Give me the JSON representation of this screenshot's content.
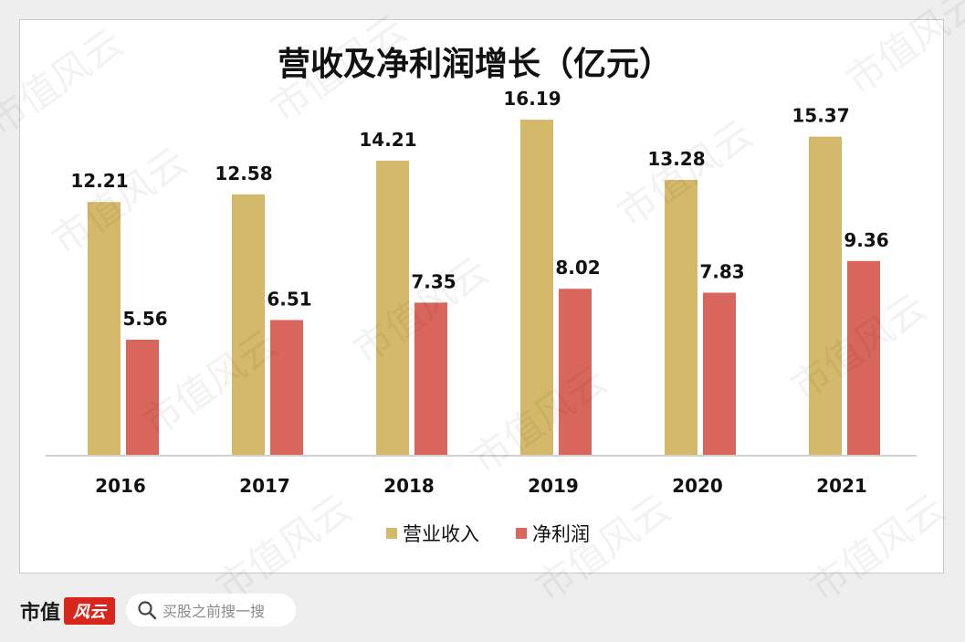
{
  "chart_data": {
    "type": "bar",
    "title": "营收及净利润增长（亿元）",
    "categories": [
      "2016",
      "2017",
      "2018",
      "2019",
      "2020",
      "2021"
    ],
    "series": [
      {
        "name": "营业收入",
        "color": "#d4b96a",
        "values": [
          12.21,
          12.58,
          14.21,
          16.19,
          13.28,
          15.37
        ]
      },
      {
        "name": "净利润",
        "color": "#d9665c",
        "values": [
          5.56,
          6.51,
          7.35,
          8.02,
          7.83,
          9.36
        ]
      }
    ],
    "ylim": [
      0,
      18
    ],
    "grid": false,
    "legend": "bottom",
    "data_labels": true
  },
  "watermark": "市值风云",
  "footer": {
    "brand": "市值",
    "brand_badge": "风云",
    "search_icon": "search-icon",
    "search_placeholder": "买股之前搜一搜"
  }
}
